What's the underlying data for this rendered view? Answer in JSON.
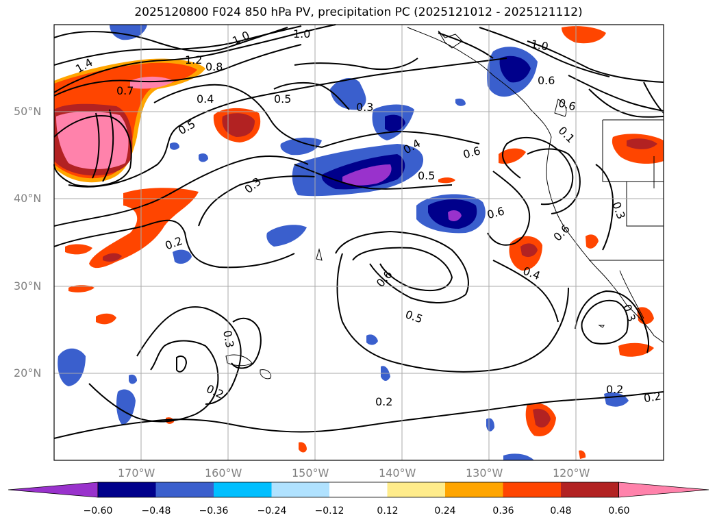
{
  "title": "2025120800 F024 850 hPa PV, precipitation PC (2025121012 - 2025121112)",
  "lat_labels": [
    "50°N",
    "40°N",
    "30°N",
    "20°N"
  ],
  "lon_labels": [
    "170°W",
    "160°W",
    "150°W",
    "140°W",
    "130°W",
    "120°W"
  ],
  "colorbar": {
    "ticks": [
      "−0.60",
      "−0.48",
      "−0.36",
      "−0.24",
      "−0.12",
      "0.12",
      "0.24",
      "0.36",
      "0.48",
      "0.60"
    ],
    "colors": [
      "#9932cc",
      "#00008b",
      "#3a5fcd",
      "#00bfff",
      "#b0e2ff",
      "#ffffff",
      "#ffec8b",
      "#ffa500",
      "#ff4500",
      "#b22222",
      "#ff82ab"
    ]
  },
  "contour_labels": [
    "1.4",
    "1.2",
    "1.0",
    "0.8",
    "0.7",
    "0.4",
    "0.5",
    "0.3",
    "0.4",
    "0.5",
    "0.6",
    "0.3",
    "0.2",
    "0.6",
    "0.5",
    "0.6",
    "0.4",
    "0.3",
    "0.6",
    "0.3",
    "0.2",
    "0.2",
    "0.2",
    "0.3",
    "1.0",
    "0.6",
    "0.6",
    "0.5",
    "0.1"
  ]
}
